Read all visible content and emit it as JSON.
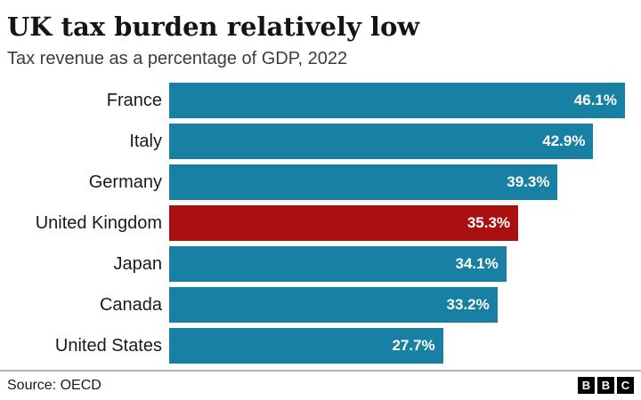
{
  "header": {
    "title": "UK tax burden relatively low",
    "subtitle": "Tax revenue as a percentage of GDP, 2022"
  },
  "chart_data": {
    "type": "bar",
    "orientation": "horizontal",
    "title": "UK tax burden relatively low",
    "subtitle": "Tax revenue as a percentage of GDP, 2022",
    "categories": [
      "France",
      "Italy",
      "Germany",
      "United Kingdom",
      "Japan",
      "Canada",
      "United States"
    ],
    "values": [
      46.1,
      42.9,
      39.3,
      35.3,
      34.1,
      33.2,
      27.7
    ],
    "value_labels": [
      "46.1%",
      "42.9%",
      "39.3%",
      "35.3%",
      "34.1%",
      "33.2%",
      "27.7%"
    ],
    "highlight_index": 3,
    "highlight_category": "United Kingdom",
    "bar_color": "#1880A2",
    "highlight_color": "#A9100F",
    "value_label_color": "#ffffff",
    "xlim": [
      0,
      47
    ],
    "grid": false,
    "legend": false
  },
  "footer": {
    "source": "Source: OECD",
    "logo_letters": [
      "B",
      "B",
      "C"
    ]
  }
}
